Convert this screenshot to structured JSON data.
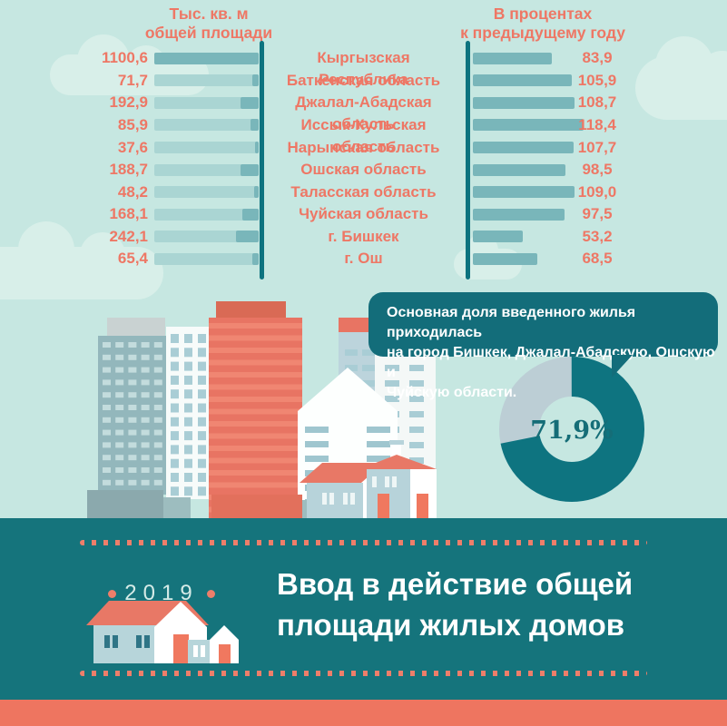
{
  "colors": {
    "background": "#c6e7e1",
    "cloud": "#d8efe9",
    "bar": "#79b6ba",
    "bar_track": "#aad5d3",
    "axis": "#0d737f",
    "accent_text": "#ee7765",
    "bubble_bg": "#136d7a",
    "donut_dark": "#0e7480",
    "donut_light": "#bcced5",
    "band_bg": "#15747c",
    "dots": "#ee7e6a",
    "footer": "#ee7560"
  },
  "chart_data": [
    {
      "type": "bar",
      "title_left": "Тыс. кв. м\nобщей площади",
      "title_right": "В процентах\nк предыдущему году",
      "categories": [
        "Кыргызская Республика",
        "Баткенская область",
        "Джалал-Абадская область",
        "Иссык-Кульская область",
        "Нарынская область",
        "Ошская область",
        "Таласская область",
        "Чуйская область",
        "г. Бишкек",
        "г. Ош"
      ],
      "series": [
        {
          "name": "Тыс. кв. м общей площади",
          "values": [
            1100.6,
            71.7,
            192.9,
            85.9,
            37.6,
            188.7,
            48.2,
            168.1,
            242.1,
            65.4
          ],
          "labels": [
            "1100,6",
            "71,7",
            "192,9",
            "85,9",
            "37,6",
            "188,7",
            "48,2",
            "168,1",
            "242,1",
            "65,4"
          ]
        },
        {
          "name": "В процентах к предыдущему году",
          "values": [
            83.9,
            105.9,
            108.7,
            118.4,
            107.7,
            98.5,
            109.0,
            97.5,
            53.2,
            68.5
          ],
          "labels": [
            "83,9",
            "105,9",
            "108,7",
            "118,4",
            "107,7",
            "98,5",
            "109,0",
            "97,5",
            "53,2",
            "68,5"
          ]
        }
      ],
      "xlim_left": [
        0,
        1100.6
      ],
      "xlim_right": [
        0,
        118.4
      ],
      "legend": "none",
      "grid": false
    },
    {
      "type": "donut",
      "value": 71.9,
      "label": "71,9%",
      "note": "Основная доля введенного жилья приходилась\nна город Бишкек, Джалал-Абадскую, Ошскую и\nЧуйскую области."
    }
  ],
  "band": {
    "year": "2019",
    "title": "Ввод в действие общей\nплощади жилых домов"
  }
}
